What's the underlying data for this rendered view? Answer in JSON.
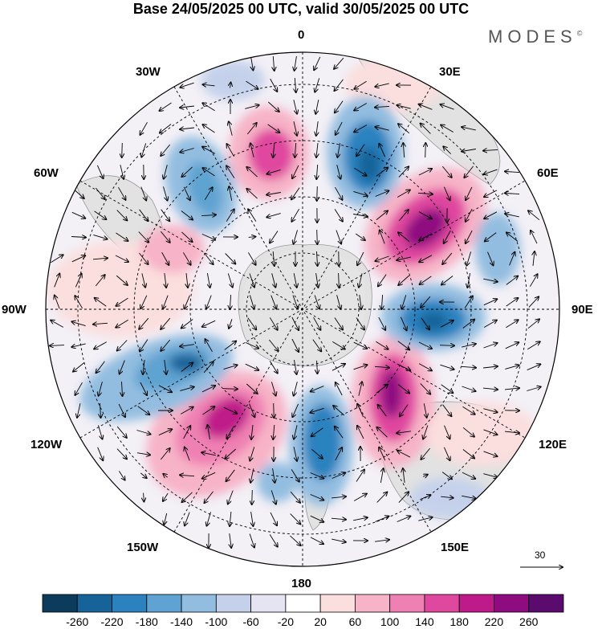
{
  "title": "Base 24/05/2025 00 UTC, valid 30/05/2025 00 UTC",
  "brand": "MODES",
  "brand_mark": "©",
  "longitude_labels": {
    "lon_0": "0",
    "lon_30e": "30E",
    "lon_60e": "60E",
    "lon_90e": "90E",
    "lon_120e": "120E",
    "lon_150e": "150E",
    "lon_180": "180",
    "lon_150w": "150W",
    "lon_120w": "120W",
    "lon_90w": "90W",
    "lon_60w": "60W",
    "lon_30w": "30W"
  },
  "reference_vector": "30",
  "colorbar": {
    "ticks": [
      "-260",
      "-220",
      "-180",
      "-140",
      "-100",
      "-60",
      "-20",
      "20",
      "60",
      "100",
      "140",
      "180",
      "220",
      "260"
    ],
    "colors": [
      "#0d3b5c",
      "#16639a",
      "#2b82bf",
      "#5ea3d1",
      "#93bde0",
      "#c5d1eb",
      "#e5e4f3",
      "#ffffff",
      "#fbdede",
      "#f7b3c7",
      "#ef80b3",
      "#e0479f",
      "#bf1a8a",
      "#8f0c80",
      "#5b0a6e"
    ]
  }
}
